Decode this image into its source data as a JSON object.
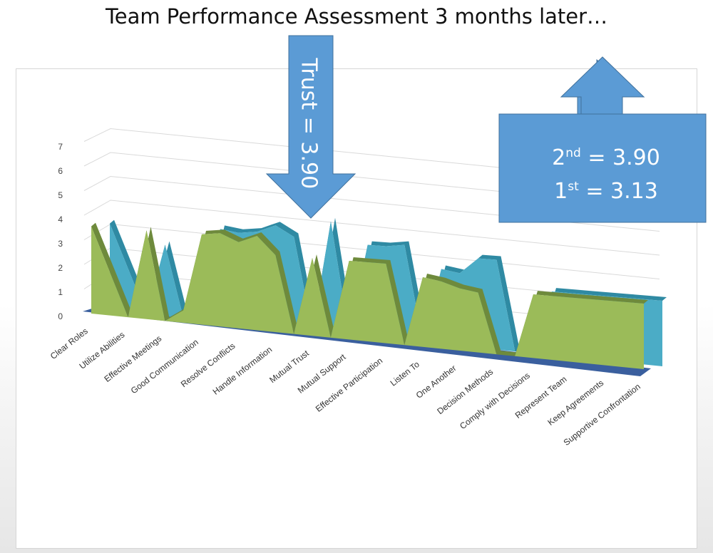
{
  "title": "Team Performance Assessment 3 months later…",
  "callouts": {
    "trust": "Trust = 3.90",
    "second": {
      "ordinal": "2",
      "suffix": "nd",
      "value": " = 3.90"
    },
    "first": {
      "ordinal": "1",
      "suffix": "st",
      "value": " =  3.13"
    }
  },
  "colors": {
    "first_series": "#9BBB59",
    "second_series": "#4BACC6",
    "floor": "#3A5F9E",
    "callout": "#5B9BD5",
    "grid": "#d9d9d9"
  },
  "chart_data": {
    "type": "area",
    "view": "3d",
    "categories": [
      "Clear Roles",
      "Utilize Abilities",
      "Effective Meetings",
      "Good Communication",
      "Resolve Conflicts",
      "Handle Information",
      "Mutual Trust",
      "Mutual Support",
      "Effective Participation",
      "Listen To",
      "One Another",
      "Decision Methods",
      "Comply with Decisions",
      "Represent Team",
      "Keep Agreements",
      "Supportive Confrontation"
    ],
    "x": [
      0,
      1,
      1.5,
      2,
      2.5,
      3,
      3.5,
      4,
      4.5,
      5,
      5.5,
      6,
      6.5,
      7,
      7.5,
      8,
      8.5,
      9,
      9.5,
      10,
      10.5,
      11,
      11.5,
      12,
      12.5,
      13,
      13.5,
      14,
      14.5,
      15
    ],
    "series": [
      {
        "values": [
          3.6,
          0,
          3.6,
          0,
          0.5,
          3.6,
          3.7,
          3.4,
          3.7,
          3.0,
          0,
          3.0,
          0,
          3.0,
          3.0,
          3.0,
          0,
          2.6,
          2.5,
          2.3,
          2.2,
          0,
          0,
          2.3,
          2.3,
          2.3,
          2.3,
          2.3,
          2.3,
          2.3
        ]
      },
      {
        "values": [
          3.6,
          0,
          2.9,
          0,
          0.6,
          3.7,
          3.6,
          3.7,
          4.0,
          3.6,
          0,
          4.3,
          0,
          3.5,
          3.5,
          3.6,
          0,
          2.8,
          2.7,
          3.3,
          3.3,
          0,
          0,
          2.3,
          2.3,
          2.3,
          2.3,
          2.3,
          2.3,
          2.3
        ]
      }
    ],
    "y_ticks": [
      "0",
      "1",
      "2",
      "3",
      "4",
      "5",
      "6",
      "7"
    ],
    "ylim": [
      0,
      7
    ],
    "grid": true,
    "legend": "none"
  }
}
